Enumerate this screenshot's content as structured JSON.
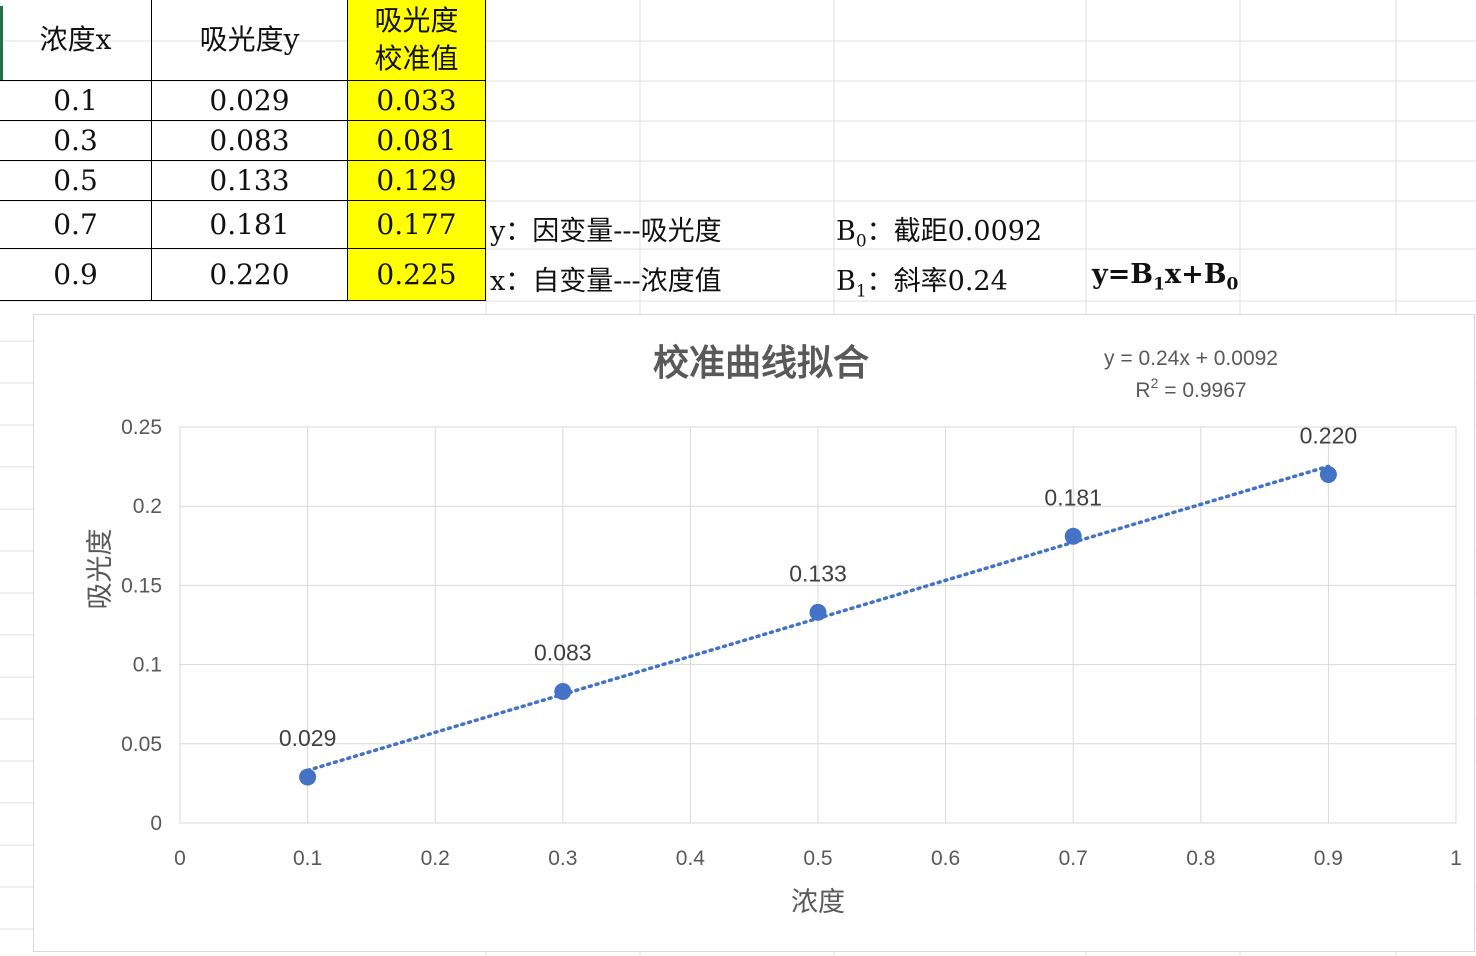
{
  "table": {
    "headers": [
      "浓度x",
      "吸光度y",
      "吸光度\n校准值"
    ],
    "header_highlight_line1": "吸光度",
    "header_highlight_line2": "校准值",
    "rows": [
      [
        "0.1",
        "0.029",
        "0.033"
      ],
      [
        "0.3",
        "0.083",
        "0.081"
      ],
      [
        "0.5",
        "0.133",
        "0.129"
      ],
      [
        "0.7",
        "0.181",
        "0.177"
      ],
      [
        "0.9",
        "0.220",
        "0.225"
      ]
    ],
    "highlight_color": "#ffff00"
  },
  "notes": {
    "y_label": "y：因变量---吸光度",
    "x_label": "x：自变量---浓度值",
    "b0_prefix": "B",
    "b0_sub": "0",
    "b0_text": "：截距0.0092",
    "b1_prefix": "B",
    "b1_sub": "1",
    "b1_text": "：斜率0.24",
    "formula_y": "y=B",
    "formula_sub1": "1",
    "formula_mid": "x+B",
    "formula_sub0": "0"
  },
  "chart_data": {
    "type": "scatter",
    "title": "校准曲线拟合",
    "xlabel": "浓度",
    "ylabel": "吸光度",
    "xlim": [
      0,
      1
    ],
    "ylim": [
      0,
      0.25
    ],
    "x_ticks": [
      "0",
      "0.1",
      "0.2",
      "0.3",
      "0.4",
      "0.5",
      "0.6",
      "0.7",
      "0.8",
      "0.9",
      "1"
    ],
    "y_ticks": [
      "0",
      "0.05",
      "0.1",
      "0.15",
      "0.2",
      "0.25"
    ],
    "x": [
      0.1,
      0.3,
      0.5,
      0.7,
      0.9
    ],
    "y": [
      0.029,
      0.083,
      0.133,
      0.181,
      0.22
    ],
    "data_labels": [
      "0.029",
      "0.083",
      "0.133",
      "0.181",
      "0.220"
    ],
    "trendline": {
      "type": "linear",
      "slope": 0.24,
      "intercept": 0.0092,
      "x_range": [
        0.1,
        0.9
      ]
    },
    "equation_text": "y = 0.24x + 0.0092",
    "r2_prefix": "R",
    "r2_sup": "2",
    "r2_text": " = 0.9967",
    "grid": true,
    "marker_color": "#4472c4",
    "axis_label_color": "#595959",
    "gridline_color": "#d9d9d9"
  }
}
